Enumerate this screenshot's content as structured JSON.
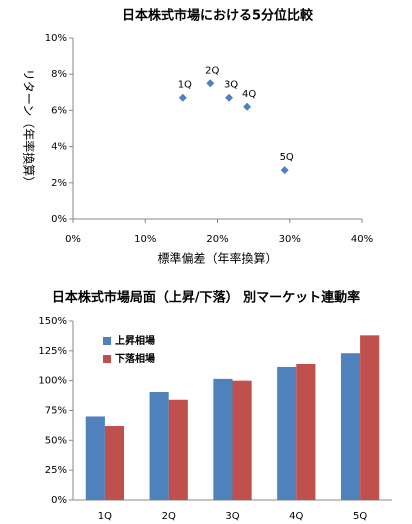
{
  "chart_data": [
    {
      "type": "scatter",
      "title": "日本株式市場における5分位比較",
      "x_label": "標準偏差（年率換算）",
      "y_label": "リターン（年率換算）",
      "labels": [
        "1Q",
        "2Q",
        "3Q",
        "4Q",
        "5Q"
      ],
      "x": [
        15.2,
        19.0,
        21.6,
        24.1,
        29.3
      ],
      "values": [
        6.7,
        7.5,
        6.7,
        6.2,
        2.7
      ],
      "color": "#4f81bd",
      "xlim": [
        0,
        40
      ],
      "xticks": [
        {
          "value": 0,
          "label": "0%"
        },
        {
          "value": 10,
          "label": "10%"
        },
        {
          "value": 20,
          "label": "20%"
        },
        {
          "value": 30,
          "label": "30%"
        },
        {
          "value": 40,
          "label": "40%"
        }
      ],
      "ylim": [
        0,
        10
      ],
      "yticks": [
        {
          "value": 0,
          "label": "0%"
        },
        {
          "value": 2,
          "label": "2%"
        },
        {
          "value": 4,
          "label": "4%"
        },
        {
          "value": 6,
          "label": "6%"
        },
        {
          "value": 8,
          "label": "8%"
        },
        {
          "value": 10,
          "label": "10%"
        }
      ]
    },
    {
      "type": "bar",
      "title": "日本株式市場局面（上昇/下落） 別マーケット連動率",
      "categories": [
        "1Q",
        "2Q",
        "3Q",
        "4Q",
        "5Q"
      ],
      "series": [
        {
          "name": "上昇相場",
          "color": "#4f81bd",
          "values": [
            70,
            90.5,
            101.5,
            111.5,
            123
          ]
        },
        {
          "name": "下落相場",
          "color": "#c0504d",
          "values": [
            62,
            84,
            100,
            114,
            138
          ]
        }
      ],
      "ylim": [
        0,
        150
      ],
      "yticks": [
        {
          "value": 0,
          "label": "0%"
        },
        {
          "value": 25,
          "label": "25%"
        },
        {
          "value": 50,
          "label": "50%"
        },
        {
          "value": 75,
          "label": "75%"
        },
        {
          "value": 100,
          "label": "100%"
        },
        {
          "value": 125,
          "label": "125%"
        },
        {
          "value": 150,
          "label": "150%"
        }
      ],
      "legend": "upper-left"
    }
  ]
}
